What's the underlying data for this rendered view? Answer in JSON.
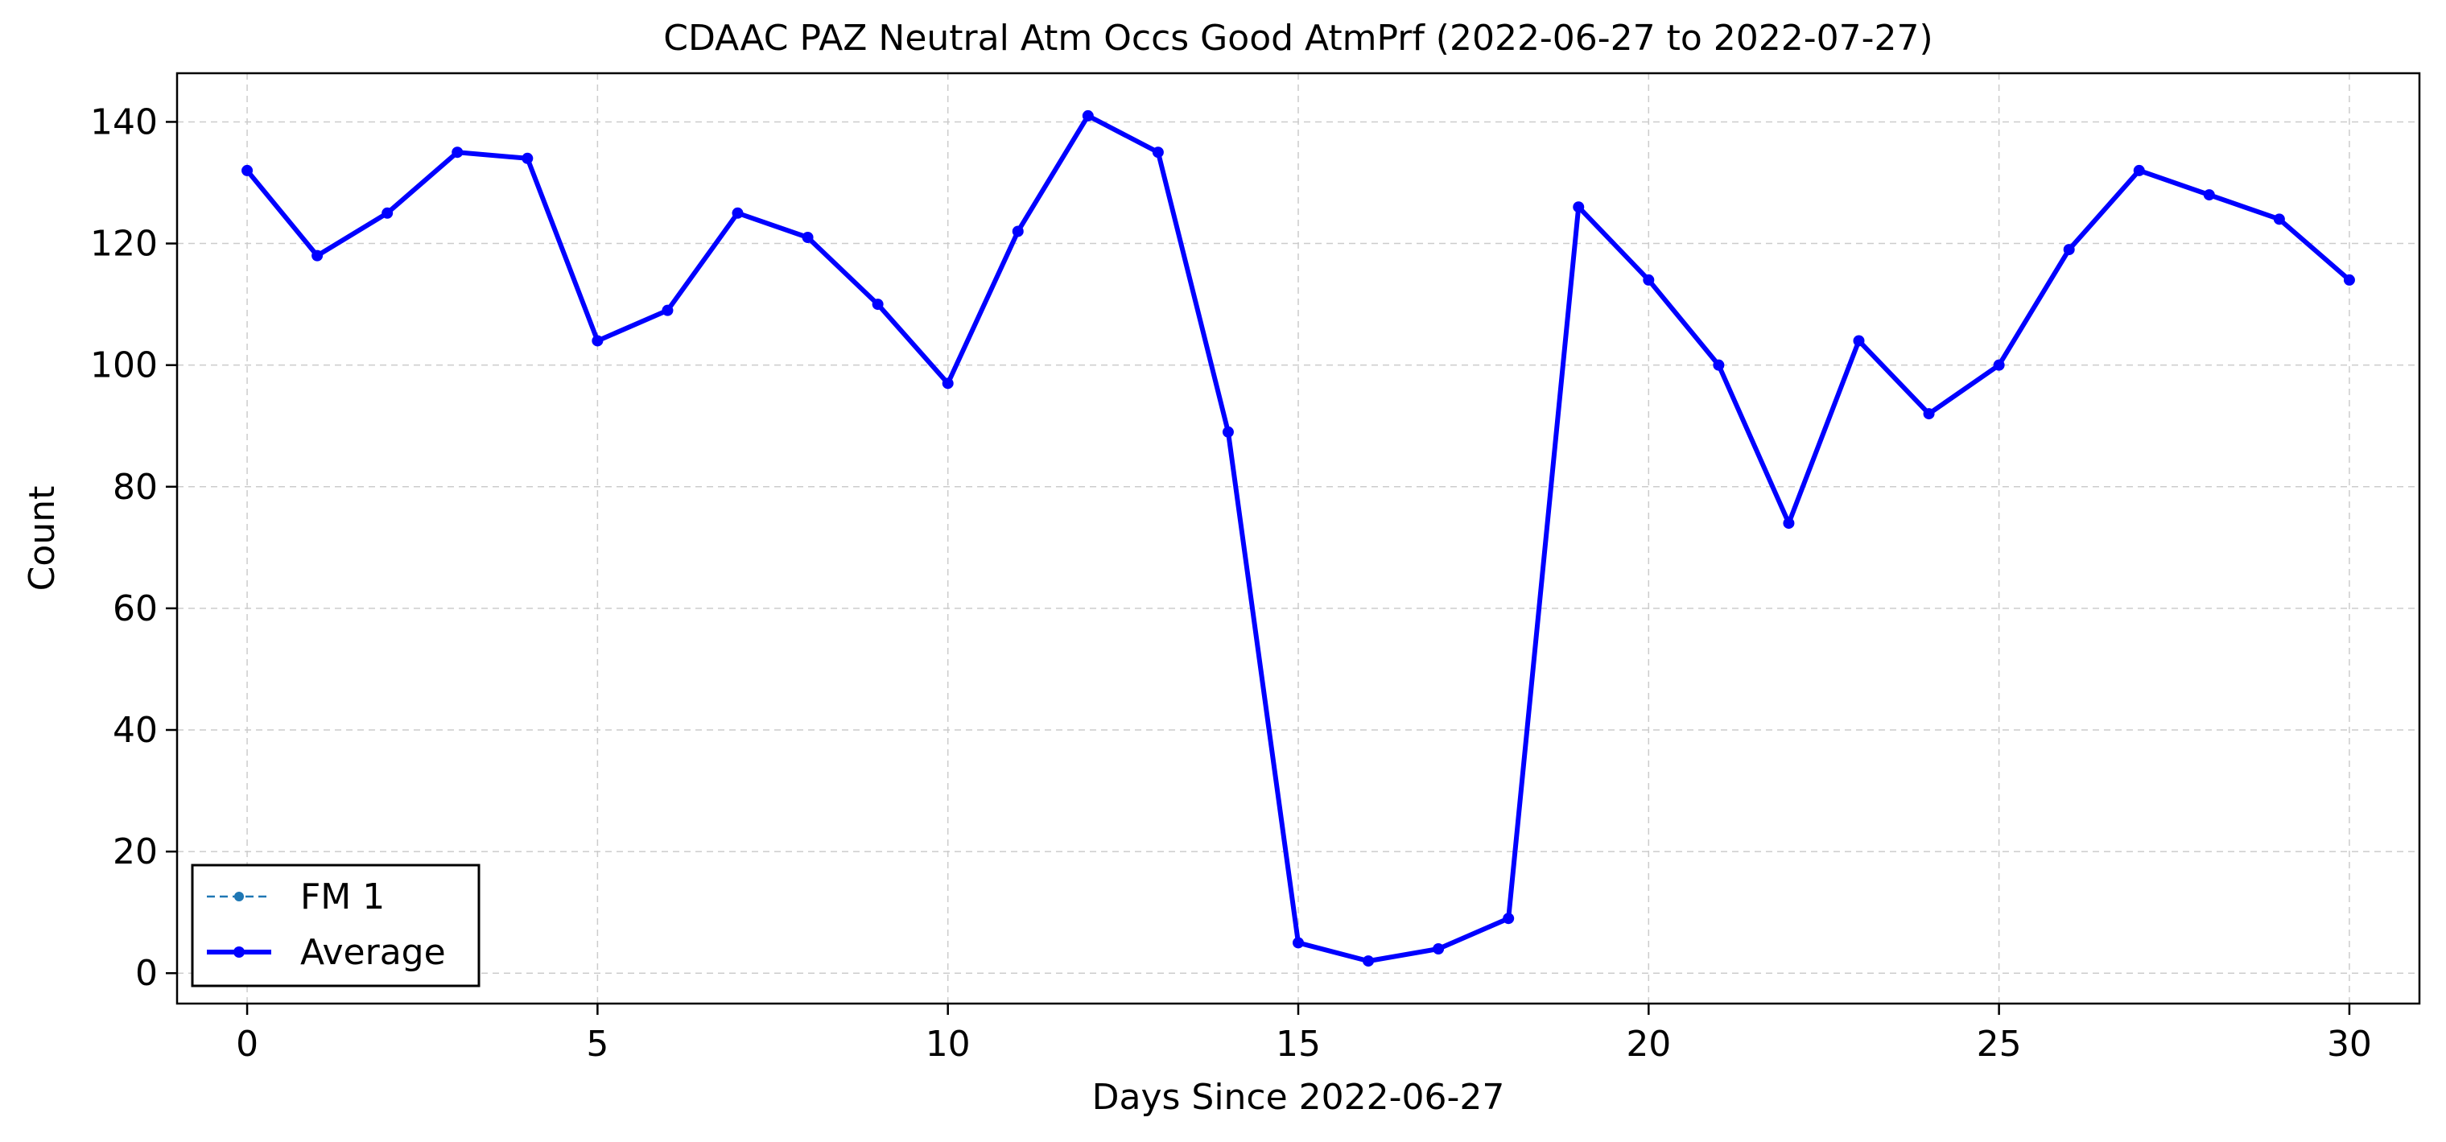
{
  "chart_data": {
    "type": "line",
    "title": "CDAAC PAZ Neutral Atm Occs Good AtmPrf (2022-06-27 to 2022-07-27)",
    "xlabel": "Days Since 2022-06-27",
    "ylabel": "Count",
    "xlim": [
      -1,
      31
    ],
    "ylim": [
      -5,
      148
    ],
    "xticks": [
      0,
      5,
      10,
      15,
      20,
      25,
      30
    ],
    "yticks": [
      0,
      20,
      40,
      60,
      80,
      100,
      120,
      140
    ],
    "grid": true,
    "legend_position": "lower-left",
    "x": [
      0,
      1,
      2,
      3,
      4,
      5,
      6,
      7,
      8,
      9,
      10,
      11,
      12,
      13,
      14,
      15,
      16,
      17,
      18,
      19,
      20,
      21,
      22,
      23,
      24,
      25,
      26,
      27,
      28,
      29,
      30
    ],
    "series": [
      {
        "name": "FM 1",
        "color": "#1f77b4",
        "style": "dashed",
        "values": [
          132,
          118,
          125,
          135,
          134,
          104,
          109,
          125,
          121,
          110,
          97,
          122,
          141,
          135,
          89,
          5,
          2,
          4,
          9,
          126,
          114,
          100,
          74,
          104,
          92,
          100,
          119,
          132,
          128,
          124,
          114
        ]
      },
      {
        "name": "Average",
        "color": "#0000ff",
        "style": "solid",
        "values": [
          132,
          118,
          125,
          135,
          134,
          104,
          109,
          125,
          121,
          110,
          97,
          122,
          141,
          135,
          89,
          5,
          2,
          4,
          9,
          126,
          114,
          100,
          74,
          104,
          92,
          100,
          119,
          132,
          128,
          124,
          114
        ]
      }
    ]
  }
}
